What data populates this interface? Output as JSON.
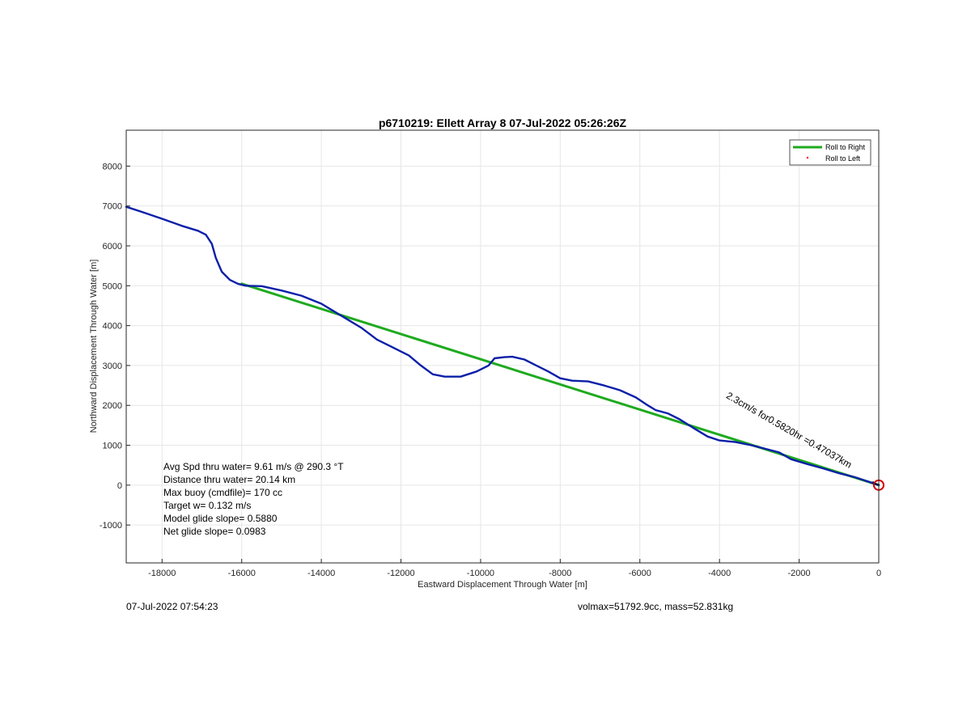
{
  "chart_data": {
    "type": "line",
    "title": "p6710219: Ellett Array 8 07-Jul-2022 05:26:26Z",
    "xlabel": "Eastward Displacement Through Water [m]",
    "ylabel": "Northward Displacement Through Water [m]",
    "xlim": [
      -18900,
      0
    ],
    "ylim": [
      -1950,
      8900
    ],
    "x_ticks": [
      -18000,
      -16000,
      -14000,
      -12000,
      -10000,
      -8000,
      -6000,
      -4000,
      -2000,
      0
    ],
    "y_ticks": [
      -1000,
      0,
      1000,
      2000,
      3000,
      4000,
      5000,
      6000,
      7000,
      8000
    ],
    "grid": true,
    "legend_position": "top-right",
    "legend": [
      {
        "label": "Roll to Right",
        "color": "#1faa1f",
        "style": "line"
      },
      {
        "label": "Roll to Left",
        "color": "#ff0000",
        "style": "dot"
      }
    ],
    "series": [
      {
        "color": "#0b1fa8",
        "points": [
          [
            -18900,
            6980
          ],
          [
            -18500,
            6850
          ],
          [
            -18000,
            6680
          ],
          [
            -17500,
            6500
          ],
          [
            -17100,
            6380
          ],
          [
            -16900,
            6280
          ],
          [
            -16750,
            6050
          ],
          [
            -16650,
            5700
          ],
          [
            -16500,
            5350
          ],
          [
            -16300,
            5150
          ],
          [
            -16100,
            5050
          ],
          [
            -15900,
            5000
          ],
          [
            -15500,
            4990
          ],
          [
            -15000,
            4880
          ],
          [
            -14500,
            4750
          ],
          [
            -14000,
            4550
          ],
          [
            -13500,
            4250
          ],
          [
            -13000,
            3950
          ],
          [
            -12600,
            3650
          ],
          [
            -12200,
            3450
          ],
          [
            -11800,
            3250
          ],
          [
            -11500,
            3000
          ],
          [
            -11200,
            2780
          ],
          [
            -10900,
            2720
          ],
          [
            -10500,
            2720
          ],
          [
            -10100,
            2850
          ],
          [
            -9800,
            3000
          ],
          [
            -9650,
            3180
          ],
          [
            -9400,
            3210
          ],
          [
            -9200,
            3220
          ],
          [
            -8900,
            3150
          ],
          [
            -8600,
            3000
          ],
          [
            -8300,
            2850
          ],
          [
            -8000,
            2680
          ],
          [
            -7700,
            2620
          ],
          [
            -7300,
            2600
          ],
          [
            -6900,
            2500
          ],
          [
            -6500,
            2380
          ],
          [
            -6100,
            2200
          ],
          [
            -5800,
            2000
          ],
          [
            -5600,
            1880
          ],
          [
            -5300,
            1800
          ],
          [
            -5000,
            1650
          ],
          [
            -4600,
            1400
          ],
          [
            -4300,
            1220
          ],
          [
            -4000,
            1120
          ],
          [
            -3600,
            1080
          ],
          [
            -3200,
            1000
          ],
          [
            -2800,
            900
          ],
          [
            -2500,
            820
          ],
          [
            -2200,
            650
          ],
          [
            -1800,
            530
          ],
          [
            -1400,
            420
          ],
          [
            -1000,
            300
          ],
          [
            -600,
            200
          ],
          [
            -300,
            100
          ],
          [
            0,
            0
          ]
        ]
      },
      {
        "name": "Roll to Right",
        "color": "#1faa1f",
        "points": [
          [
            -16000,
            5050
          ],
          [
            0,
            0
          ]
        ]
      }
    ],
    "end_marker": {
      "x": 0,
      "y": 0,
      "color": "#d40000"
    },
    "current_vector": {
      "x_start": 0,
      "y_start": 0,
      "x_end": -3850,
      "y_end": 2200,
      "label": "2.3cm/s for0.5820hr =0.47037km"
    },
    "info_text": [
      "Avg Spd thru water=  9.61 m/s @ 290.3 °T",
      "Distance thru water= 20.14 km",
      "Max buoy (cmdfile)= 170 cc",
      "Target w= 0.132 m/s",
      "Model glide slope= 0.5880",
      "Net glide slope= 0.0983"
    ]
  },
  "footer": {
    "timestamp": "07-Jul-2022 07:54:23",
    "volmax": "volmax=51792.9cc, mass=52.831kg"
  }
}
